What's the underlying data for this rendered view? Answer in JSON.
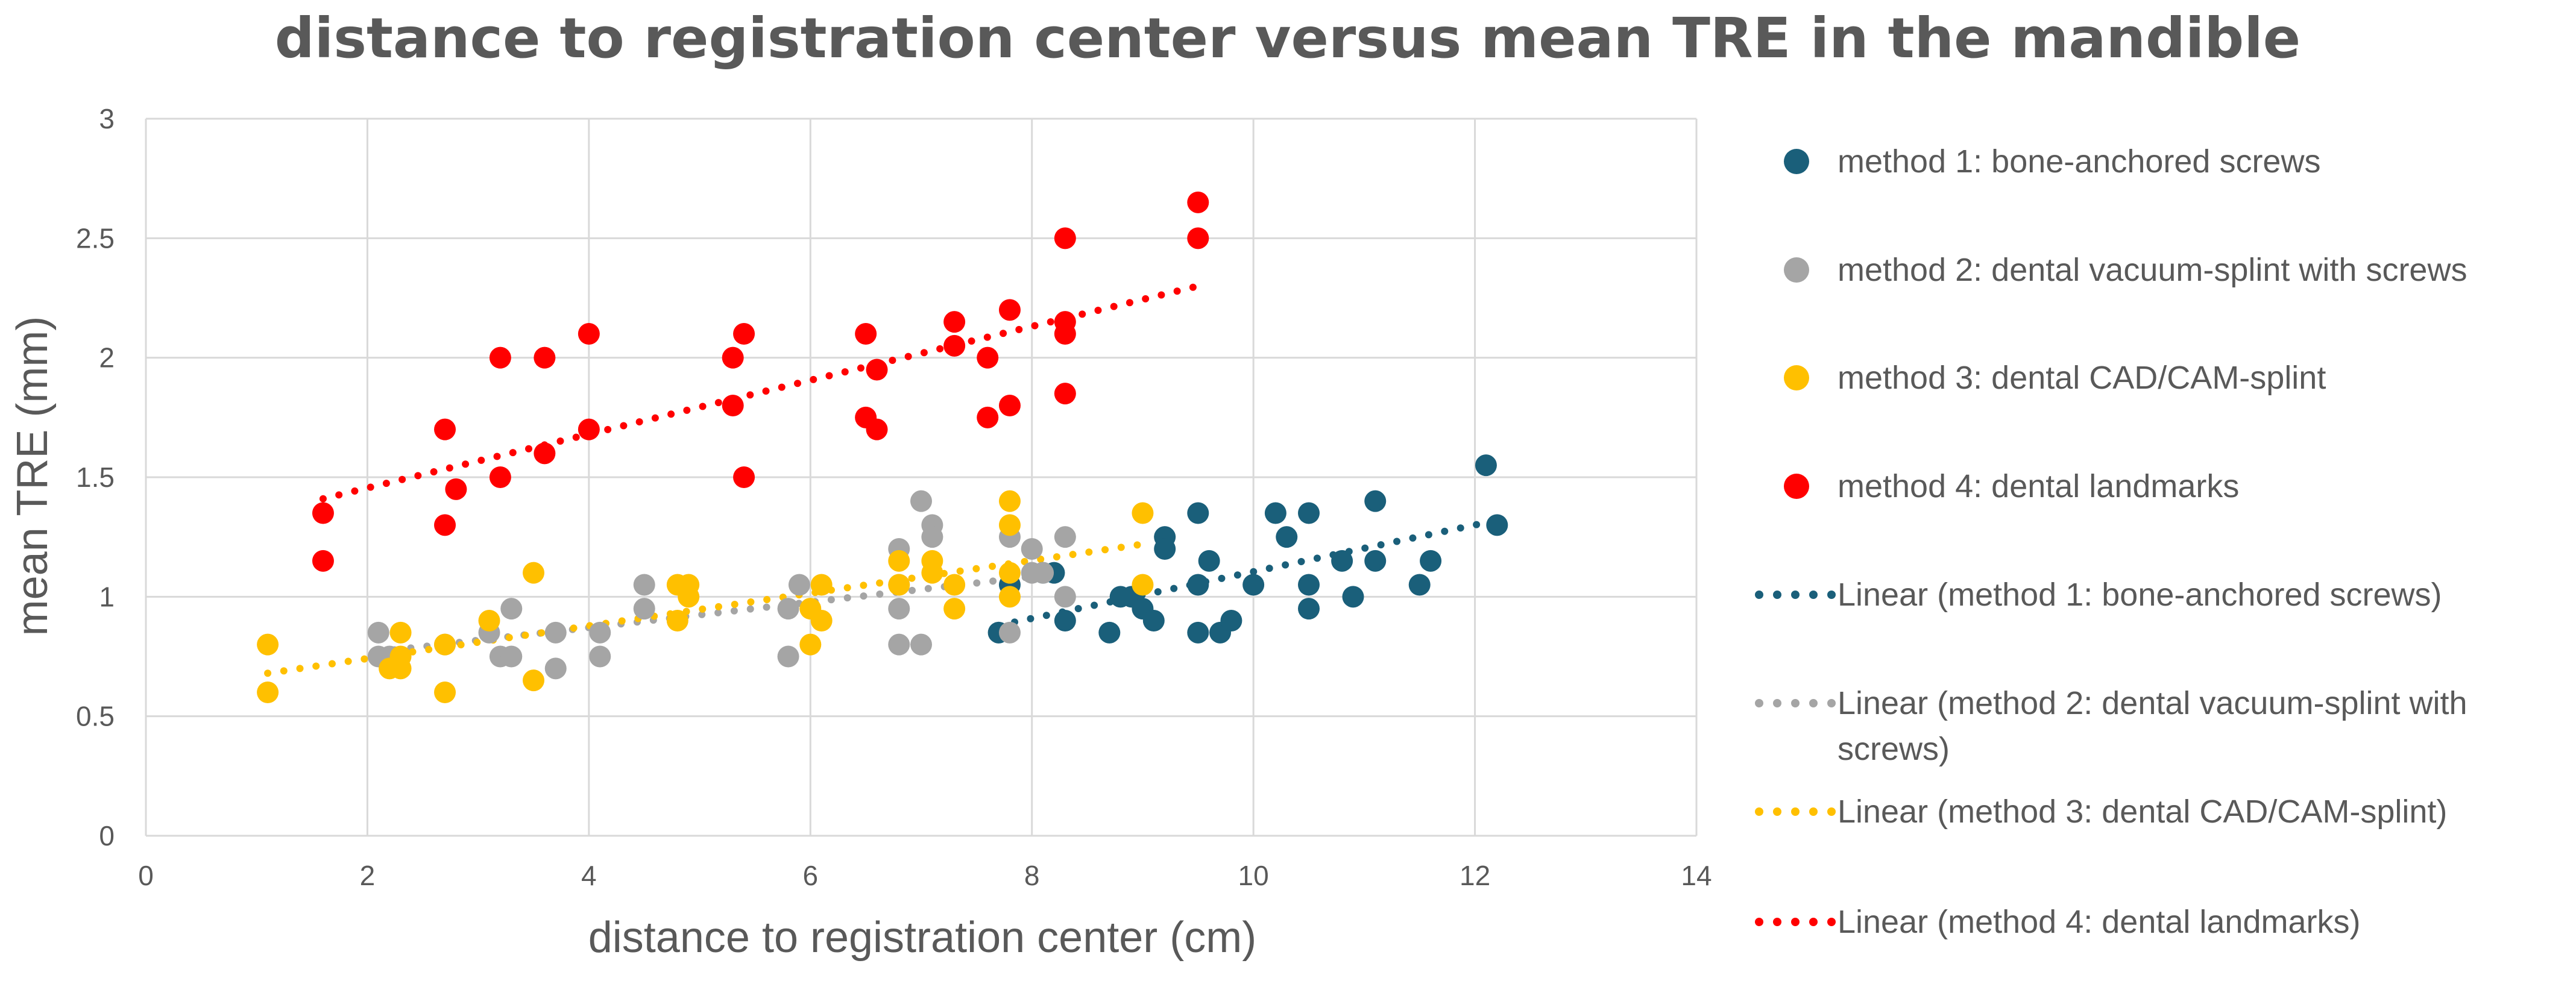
{
  "chart_data": {
    "type": "scatter",
    "title": "distance to registration center versus mean TRE in the mandible",
    "xlabel": "distance to registration center (cm)",
    "ylabel": "mean TRE (mm)",
    "xlim": [
      0,
      14
    ],
    "ylim": [
      0,
      3
    ],
    "x_ticks": [
      "0",
      "2",
      "4",
      "6",
      "8",
      "10",
      "12",
      "14"
    ],
    "y_ticks": [
      "0",
      "0.5",
      "1",
      "1.5",
      "2",
      "2.5",
      "3"
    ],
    "grid": true,
    "legend_position": "right",
    "series": [
      {
        "name": "method 1: bone-anchored screws",
        "color": "#1a5f7a",
        "points": [
          [
            7.7,
            0.85
          ],
          [
            7.8,
            1.05
          ],
          [
            8.1,
            1.1
          ],
          [
            8.2,
            1.1
          ],
          [
            8.3,
            0.9
          ],
          [
            8.7,
            0.85
          ],
          [
            8.8,
            1.0
          ],
          [
            8.9,
            1.0
          ],
          [
            9.0,
            0.95
          ],
          [
            9.1,
            0.9
          ],
          [
            9.2,
            1.25
          ],
          [
            9.2,
            1.2
          ],
          [
            9.5,
            1.35
          ],
          [
            9.5,
            1.05
          ],
          [
            9.5,
            0.85
          ],
          [
            9.6,
            1.15
          ],
          [
            9.7,
            0.85
          ],
          [
            9.8,
            0.9
          ],
          [
            10.0,
            1.05
          ],
          [
            10.2,
            1.35
          ],
          [
            10.3,
            1.25
          ],
          [
            10.5,
            1.35
          ],
          [
            10.5,
            1.05
          ],
          [
            10.5,
            0.95
          ],
          [
            10.8,
            1.15
          ],
          [
            10.9,
            1.0
          ],
          [
            11.1,
            1.4
          ],
          [
            11.1,
            1.15
          ],
          [
            11.5,
            1.05
          ],
          [
            11.6,
            1.15
          ],
          [
            12.1,
            1.55
          ],
          [
            12.2,
            1.3
          ]
        ],
        "trend": {
          "label": "Linear (method 1: bone-anchored screws)",
          "x": [
            7.7,
            12.2
          ],
          "y": [
            0.88,
            1.32
          ]
        }
      },
      {
        "name": "method 2: dental vacuum-splint with screws",
        "color": "#a5a5a5",
        "points": [
          [
            2.1,
            0.85
          ],
          [
            2.1,
            0.75
          ],
          [
            2.2,
            0.75
          ],
          [
            2.7,
            0.8
          ],
          [
            3.1,
            0.85
          ],
          [
            3.2,
            0.75
          ],
          [
            3.3,
            0.95
          ],
          [
            3.3,
            0.75
          ],
          [
            3.7,
            0.7
          ],
          [
            3.7,
            0.85
          ],
          [
            4.1,
            0.85
          ],
          [
            4.1,
            0.75
          ],
          [
            4.5,
            1.05
          ],
          [
            4.5,
            0.95
          ],
          [
            5.8,
            0.75
          ],
          [
            5.8,
            0.95
          ],
          [
            5.9,
            1.05
          ],
          [
            6.8,
            1.2
          ],
          [
            6.8,
            1.05
          ],
          [
            6.8,
            0.95
          ],
          [
            6.8,
            0.8
          ],
          [
            7.0,
            1.4
          ],
          [
            7.0,
            0.8
          ],
          [
            7.1,
            1.3
          ],
          [
            7.1,
            1.25
          ],
          [
            7.8,
            1.25
          ],
          [
            7.8,
            0.85
          ],
          [
            8.0,
            1.2
          ],
          [
            8.0,
            1.1
          ],
          [
            8.1,
            1.1
          ],
          [
            8.3,
            1.25
          ],
          [
            8.3,
            1.0
          ]
        ],
        "trend": {
          "label": "Linear (method 2: dental vacuum-splint with screws)",
          "x": [
            2.1,
            8.3
          ],
          "y": [
            0.77,
            1.1
          ]
        }
      },
      {
        "name": "method 3: dental CAD/CAM-splint",
        "color": "#ffc000",
        "points": [
          [
            1.1,
            0.8
          ],
          [
            1.1,
            0.6
          ],
          [
            2.2,
            0.7
          ],
          [
            2.3,
            0.75
          ],
          [
            2.3,
            0.85
          ],
          [
            2.3,
            0.7
          ],
          [
            2.7,
            0.8
          ],
          [
            2.7,
            0.6
          ],
          [
            3.1,
            0.9
          ],
          [
            3.5,
            1.1
          ],
          [
            3.5,
            0.65
          ],
          [
            4.8,
            1.05
          ],
          [
            4.8,
            0.9
          ],
          [
            4.9,
            1.05
          ],
          [
            4.9,
            1.0
          ],
          [
            6.0,
            0.95
          ],
          [
            6.0,
            0.8
          ],
          [
            6.1,
            1.05
          ],
          [
            6.1,
            0.9
          ],
          [
            6.8,
            1.15
          ],
          [
            6.8,
            1.05
          ],
          [
            7.1,
            1.15
          ],
          [
            7.1,
            1.1
          ],
          [
            7.3,
            1.05
          ],
          [
            7.3,
            0.95
          ],
          [
            7.8,
            1.4
          ],
          [
            7.8,
            1.3
          ],
          [
            7.8,
            1.1
          ],
          [
            7.8,
            1.0
          ],
          [
            9.0,
            1.35
          ],
          [
            9.0,
            1.05
          ]
        ],
        "trend": {
          "label": "Linear (method 3: dental CAD/CAM-splint)",
          "x": [
            1.1,
            9.0
          ],
          "y": [
            0.68,
            1.22
          ]
        }
      },
      {
        "name": "method 4: dental landmarks",
        "color": "#ff0000",
        "points": [
          [
            1.6,
            1.35
          ],
          [
            1.6,
            1.15
          ],
          [
            2.7,
            1.7
          ],
          [
            2.7,
            1.3
          ],
          [
            2.8,
            1.45
          ],
          [
            3.2,
            2.0
          ],
          [
            3.2,
            1.5
          ],
          [
            3.6,
            2.0
          ],
          [
            3.6,
            1.6
          ],
          [
            4.0,
            2.1
          ],
          [
            4.0,
            1.7
          ],
          [
            5.3,
            2.0
          ],
          [
            5.3,
            1.8
          ],
          [
            5.4,
            2.1
          ],
          [
            5.4,
            1.5
          ],
          [
            6.5,
            2.1
          ],
          [
            6.5,
            1.75
          ],
          [
            6.6,
            1.95
          ],
          [
            6.6,
            1.7
          ],
          [
            7.3,
            2.15
          ],
          [
            7.3,
            2.05
          ],
          [
            7.6,
            2.0
          ],
          [
            7.6,
            1.75
          ],
          [
            7.8,
            2.2
          ],
          [
            7.8,
            1.8
          ],
          [
            8.3,
            2.5
          ],
          [
            8.3,
            2.15
          ],
          [
            8.3,
            2.1
          ],
          [
            8.3,
            1.85
          ],
          [
            9.5,
            2.65
          ],
          [
            9.5,
            2.5
          ]
        ],
        "trend": {
          "label": "Linear (method 4: dental landmarks)",
          "x": [
            1.6,
            9.5
          ],
          "y": [
            1.41,
            2.3
          ]
        }
      }
    ]
  }
}
